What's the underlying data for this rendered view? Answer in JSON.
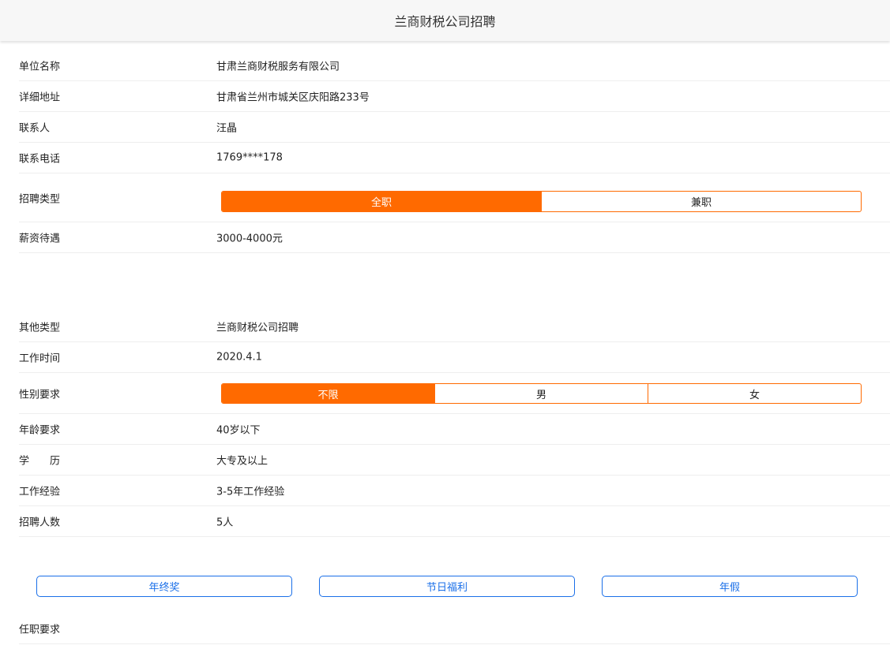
{
  "header": {
    "title": "兰商财税公司招聘"
  },
  "section1": [
    {
      "label": "单位名称",
      "value": "甘肃兰商财税服务有限公司"
    },
    {
      "label": "详细地址",
      "value": "甘肃省兰州市城关区庆阳路233号"
    },
    {
      "label": "联系人",
      "value": "汪晶"
    },
    {
      "label": "联系电话",
      "value": "1769****178"
    }
  ],
  "job_type": {
    "label": "招聘类型",
    "options": [
      "全职",
      "兼职"
    ],
    "selected": "全职"
  },
  "salary": {
    "label": "薪资待遇",
    "value": "3000-4000元"
  },
  "section2": [
    {
      "label": "其他类型",
      "value": "兰商财税公司招聘"
    },
    {
      "label": "工作时间",
      "value": "2020.4.1"
    }
  ],
  "gender": {
    "label": "性别要求",
    "options": [
      "不限",
      "男",
      "女"
    ],
    "selected": "不限"
  },
  "section3": [
    {
      "label": "年龄要求",
      "value": "40岁以下"
    },
    {
      "label": "学　　历",
      "value": "大专及以上"
    },
    {
      "label": "工作经验",
      "value": "3-5年工作经验"
    },
    {
      "label": "招聘人数",
      "value": "5人"
    }
  ],
  "benefits": [
    "年终奖",
    "节日福利",
    "年假"
  ],
  "requirements": {
    "label": "任职要求"
  },
  "colors": {
    "accent": "#ff6a00",
    "link": "#1a6fe8"
  }
}
